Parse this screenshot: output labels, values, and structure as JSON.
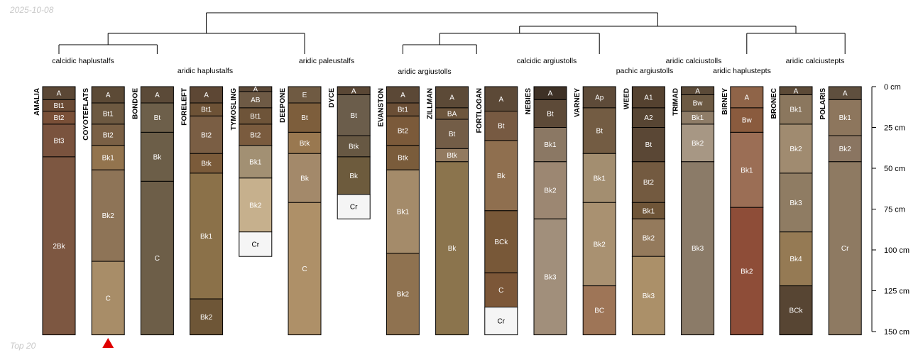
{
  "header": {
    "date": "2025-10-08"
  },
  "footer": {
    "caption": "Top 20"
  },
  "chart_data": {
    "type": "soil-profile-sketch",
    "title": "",
    "depth_axis": {
      "min": 0,
      "max": 150,
      "unit": "cm",
      "ticks": [
        0,
        25,
        50,
        75,
        100,
        125,
        150
      ],
      "tick_labels": [
        "0 cm",
        "25 cm",
        "50 cm",
        "75 cm",
        "100 cm",
        "125 cm",
        "150 cm"
      ]
    },
    "marker": {
      "profile": "COYOTEFLATS",
      "shape": "triangle",
      "color": "#e00000"
    },
    "taxonomy_labels": [
      "calcidic haplustalfs",
      "aridic haplustalfs",
      "aridic paleustalfs",
      "aridic argiustolls",
      "calcidic argiustolls",
      "pachic argiustolls",
      "aridic calciustolls",
      "aridic haplustepts",
      "aridic calciustepts"
    ],
    "profiles": [
      {
        "name": "AMALIA",
        "horizons": [
          {
            "name": "A",
            "top": 0,
            "bottom": 8,
            "color": "#5b4735"
          },
          {
            "name": "Bt1",
            "top": 8,
            "bottom": 15,
            "color": "#6a4a34"
          },
          {
            "name": "Bt2",
            "top": 15,
            "bottom": 23,
            "color": "#7a5038"
          },
          {
            "name": "Bt3",
            "top": 23,
            "bottom": 43,
            "color": "#7a533e"
          },
          {
            "name": "2Bk",
            "top": 43,
            "bottom": 152,
            "color": "#7d5741"
          }
        ]
      },
      {
        "name": "COYOTEFLATS",
        "horizons": [
          {
            "name": "A",
            "top": 0,
            "bottom": 10,
            "color": "#5c4a36"
          },
          {
            "name": "Bt1",
            "top": 10,
            "bottom": 23,
            "color": "#6d5941"
          },
          {
            "name": "Bt2",
            "top": 23,
            "bottom": 36,
            "color": "#7a6045"
          },
          {
            "name": "Bk1",
            "top": 36,
            "bottom": 51,
            "color": "#93744e"
          },
          {
            "name": "Bk2",
            "top": 51,
            "bottom": 107,
            "color": "#8e7457"
          },
          {
            "name": "C",
            "top": 107,
            "bottom": 152,
            "color": "#a88d68"
          }
        ]
      },
      {
        "name": "BONDOE",
        "horizons": [
          {
            "name": "A",
            "top": 0,
            "bottom": 10,
            "color": "#5b4a38"
          },
          {
            "name": "Bt",
            "top": 10,
            "bottom": 28,
            "color": "#6d5f4a"
          },
          {
            "name": "Bk",
            "top": 28,
            "bottom": 58,
            "color": "#6c5e48"
          },
          {
            "name": "C",
            "top": 58,
            "bottom": 152,
            "color": "#6d5e48"
          }
        ]
      },
      {
        "name": "FORELEFT",
        "horizons": [
          {
            "name": "A",
            "top": 0,
            "bottom": 10,
            "color": "#5d4734"
          },
          {
            "name": "Bt1",
            "top": 10,
            "bottom": 18,
            "color": "#6d5236"
          },
          {
            "name": "Bt2",
            "top": 18,
            "bottom": 41,
            "color": "#7a5e44"
          },
          {
            "name": "Btk",
            "top": 41,
            "bottom": 53,
            "color": "#7b5b3a"
          },
          {
            "name": "Bk1",
            "top": 53,
            "bottom": 130,
            "color": "#8b7149"
          },
          {
            "name": "Bk2",
            "top": 130,
            "bottom": 152,
            "color": "#6e5637"
          }
        ]
      },
      {
        "name": "TYMOSLING",
        "horizons": [
          {
            "name": "A",
            "top": 0,
            "bottom": 3,
            "color": "#5b4837"
          },
          {
            "name": "AB",
            "top": 3,
            "bottom": 13,
            "color": "#6e5a45"
          },
          {
            "name": "Bt1",
            "top": 13,
            "bottom": 23,
            "color": "#6e5439"
          },
          {
            "name": "Bt2",
            "top": 23,
            "bottom": 36,
            "color": "#7a5b3e"
          },
          {
            "name": "Bk1",
            "top": 36,
            "bottom": 56,
            "color": "#a29073"
          },
          {
            "name": "Bk2",
            "top": 56,
            "bottom": 89,
            "color": "#c6b08d"
          },
          {
            "name": "Cr",
            "top": 89,
            "bottom": 104,
            "color": "#f5f5f5"
          }
        ]
      },
      {
        "name": "DEEPONE",
        "horizons": [
          {
            "name": "E",
            "top": 0,
            "bottom": 10,
            "color": "#6f5a42"
          },
          {
            "name": "Bt",
            "top": 10,
            "bottom": 28,
            "color": "#7d5e3c"
          },
          {
            "name": "Btk",
            "top": 28,
            "bottom": 41,
            "color": "#997850"
          },
          {
            "name": "Bk",
            "top": 41,
            "bottom": 71,
            "color": "#a3896a"
          },
          {
            "name": "C",
            "top": 71,
            "bottom": 152,
            "color": "#ae9068"
          }
        ]
      },
      {
        "name": "DYCE",
        "horizons": [
          {
            "name": "A",
            "top": 0,
            "bottom": 5,
            "color": "#5a4735"
          },
          {
            "name": "Bt",
            "top": 5,
            "bottom": 30,
            "color": "#6b5d4b"
          },
          {
            "name": "Btk",
            "top": 30,
            "bottom": 43,
            "color": "#675843"
          },
          {
            "name": "Bk",
            "top": 43,
            "bottom": 66,
            "color": "#6d5b3d"
          },
          {
            "name": "Cr",
            "top": 66,
            "bottom": 81,
            "color": "#f5f5f5"
          }
        ]
      },
      {
        "name": "EVANSTON",
        "horizons": [
          {
            "name": "A",
            "top": 0,
            "bottom": 10,
            "color": "#5b4836"
          },
          {
            "name": "Bt1",
            "top": 10,
            "bottom": 18,
            "color": "#6a4e35"
          },
          {
            "name": "Bt2",
            "top": 18,
            "bottom": 36,
            "color": "#7b5a3a"
          },
          {
            "name": "Btk",
            "top": 36,
            "bottom": 51,
            "color": "#7a5c3b"
          },
          {
            "name": "Bk1",
            "top": 51,
            "bottom": 102,
            "color": "#a48b6a"
          },
          {
            "name": "Bk2",
            "top": 102,
            "bottom": 152,
            "color": "#8f7250"
          }
        ]
      },
      {
        "name": "ZILLMAN",
        "horizons": [
          {
            "name": "A",
            "top": 0,
            "bottom": 13,
            "color": "#5c4a37"
          },
          {
            "name": "BA",
            "top": 13,
            "bottom": 20,
            "color": "#6d563d"
          },
          {
            "name": "Bt",
            "top": 20,
            "bottom": 38,
            "color": "#735d47"
          },
          {
            "name": "Btk",
            "top": 38,
            "bottom": 46,
            "color": "#927a60"
          },
          {
            "name": "Bk",
            "top": 46,
            "bottom": 152,
            "color": "#8b744d"
          }
        ]
      },
      {
        "name": "FORTLOGAN",
        "horizons": [
          {
            "name": "A",
            "top": 0,
            "bottom": 15,
            "color": "#5c4937"
          },
          {
            "name": "Bt",
            "top": 15,
            "bottom": 33,
            "color": "#775a42"
          },
          {
            "name": "Bk",
            "top": 33,
            "bottom": 76,
            "color": "#8f6f4f"
          },
          {
            "name": "BCk",
            "top": 76,
            "bottom": 114,
            "color": "#785838"
          },
          {
            "name": "C",
            "top": 114,
            "bottom": 135,
            "color": "#7c5738"
          },
          {
            "name": "Cr",
            "top": 135,
            "bottom": 152,
            "color": "#f5f5f5"
          }
        ]
      },
      {
        "name": "NEBIES",
        "horizons": [
          {
            "name": "A",
            "top": 0,
            "bottom": 8,
            "color": "#3e3126"
          },
          {
            "name": "Bt",
            "top": 8,
            "bottom": 25,
            "color": "#5d4a38"
          },
          {
            "name": "Bk1",
            "top": 25,
            "bottom": 46,
            "color": "#8b7864"
          },
          {
            "name": "Bk2",
            "top": 46,
            "bottom": 81,
            "color": "#9c8772"
          },
          {
            "name": "Bk3",
            "top": 81,
            "bottom": 152,
            "color": "#a18f7b"
          }
        ]
      },
      {
        "name": "VARNEY",
        "horizons": [
          {
            "name": "Ap",
            "top": 0,
            "bottom": 13,
            "color": "#5e4b39"
          },
          {
            "name": "Bt",
            "top": 13,
            "bottom": 41,
            "color": "#735c43"
          },
          {
            "name": "Bk1",
            "top": 41,
            "bottom": 71,
            "color": "#a38e70"
          },
          {
            "name": "Bk2",
            "top": 71,
            "bottom": 122,
            "color": "#a99171"
          },
          {
            "name": "BC",
            "top": 122,
            "bottom": 152,
            "color": "#9e7557"
          }
        ]
      },
      {
        "name": "WEED",
        "horizons": [
          {
            "name": "A1",
            "top": 0,
            "bottom": 13,
            "color": "#554230"
          },
          {
            "name": "A2",
            "top": 13,
            "bottom": 25,
            "color": "#574533"
          },
          {
            "name": "Bt",
            "top": 25,
            "bottom": 46,
            "color": "#5a4735"
          },
          {
            "name": "Bt2",
            "top": 46,
            "bottom": 71,
            "color": "#735a40"
          },
          {
            "name": "Bk1",
            "top": 71,
            "bottom": 81,
            "color": "#6f5538"
          },
          {
            "name": "Bk2",
            "top": 81,
            "bottom": 104,
            "color": "#947a5c"
          },
          {
            "name": "Bk3",
            "top": 104,
            "bottom": 152,
            "color": "#ab9069"
          }
        ]
      },
      {
        "name": "TRIMAD",
        "horizons": [
          {
            "name": "A",
            "top": 0,
            "bottom": 5,
            "color": "#5b4a38"
          },
          {
            "name": "Bw",
            "top": 5,
            "bottom": 15,
            "color": "#6d5a43"
          },
          {
            "name": "Bk1",
            "top": 15,
            "bottom": 23,
            "color": "#8f7d68"
          },
          {
            "name": "Bk2",
            "top": 23,
            "bottom": 46,
            "color": "#a79784"
          },
          {
            "name": "Bk3",
            "top": 46,
            "bottom": 152,
            "color": "#8b7b68"
          }
        ]
      },
      {
        "name": "BIRNEY",
        "horizons": [
          {
            "name": "A",
            "top": 0,
            "bottom": 13,
            "color": "#8f6448"
          },
          {
            "name": "Bw",
            "top": 13,
            "bottom": 28,
            "color": "#8a5b3e"
          },
          {
            "name": "Bk1",
            "top": 28,
            "bottom": 74,
            "color": "#9b6e55"
          },
          {
            "name": "Bk2",
            "top": 74,
            "bottom": 152,
            "color": "#8e4d38"
          }
        ]
      },
      {
        "name": "BRONEC",
        "horizons": [
          {
            "name": "A",
            "top": 0,
            "bottom": 5,
            "color": "#5c4a37"
          },
          {
            "name": "Bk1",
            "top": 5,
            "bottom": 23,
            "color": "#8b775e"
          },
          {
            "name": "Bk2",
            "top": 23,
            "bottom": 53,
            "color": "#a08b70"
          },
          {
            "name": "Bk3",
            "top": 53,
            "bottom": 89,
            "color": "#8f7c63"
          },
          {
            "name": "Bk4",
            "top": 89,
            "bottom": 122,
            "color": "#957a54"
          },
          {
            "name": "BCk",
            "top": 122,
            "bottom": 152,
            "color": "#574533"
          }
        ]
      },
      {
        "name": "POLARIS",
        "horizons": [
          {
            "name": "A",
            "top": 0,
            "bottom": 8,
            "color": "#5f4f3e"
          },
          {
            "name": "Bk1",
            "top": 8,
            "bottom": 30,
            "color": "#8d765d"
          },
          {
            "name": "Bk2",
            "top": 30,
            "bottom": 46,
            "color": "#8a7561"
          },
          {
            "name": "Cr",
            "top": 46,
            "bottom": 152,
            "color": "#8e7a62"
          }
        ]
      }
    ]
  }
}
